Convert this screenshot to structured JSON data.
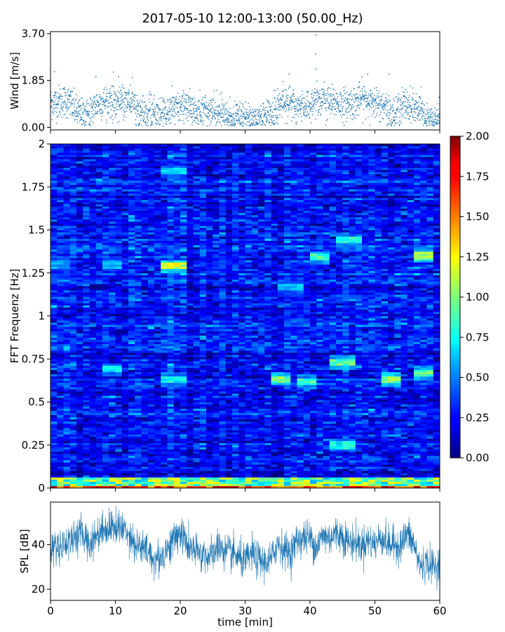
{
  "figure": {
    "title": "2017-05-10 12:00-13:00 (50.00_Hz)"
  },
  "chart_data": [
    {
      "id": "wind",
      "type": "scatter",
      "title": "",
      "xlabel": "",
      "ylabel": "Wind [m/s]",
      "xlim": [
        0,
        60
      ],
      "ylim": [
        -0.1,
        3.78
      ],
      "yticks": [
        0.0,
        1.85,
        3.7
      ],
      "ytick_labels": [
        "0.00",
        "1.85",
        "3.70"
      ],
      "x_ticks_labeled": false,
      "color": "#1f77b4",
      "samples_per_minute": 40,
      "levels": [
        {
          "x": 0,
          "y": 0.95
        },
        {
          "x": 2,
          "y": 1.05
        },
        {
          "x": 3,
          "y": 1.0
        },
        {
          "x": 4,
          "y": 0.6
        },
        {
          "x": 5,
          "y": 0.5
        },
        {
          "x": 6,
          "y": 0.55
        },
        {
          "x": 7,
          "y": 0.9
        },
        {
          "x": 8,
          "y": 1.0
        },
        {
          "x": 9,
          "y": 1.1
        },
        {
          "x": 10,
          "y": 0.9
        },
        {
          "x": 11,
          "y": 1.05
        },
        {
          "x": 12,
          "y": 1.1
        },
        {
          "x": 13,
          "y": 0.85
        },
        {
          "x": 14,
          "y": 0.6
        },
        {
          "x": 15,
          "y": 0.55
        },
        {
          "x": 17,
          "y": 0.55
        },
        {
          "x": 19,
          "y": 0.7
        },
        {
          "x": 20,
          "y": 0.75
        },
        {
          "x": 21,
          "y": 0.8
        },
        {
          "x": 22,
          "y": 0.7
        },
        {
          "x": 24,
          "y": 0.65
        },
        {
          "x": 26,
          "y": 0.55
        },
        {
          "x": 28,
          "y": 0.35
        },
        {
          "x": 30,
          "y": 0.45
        },
        {
          "x": 31,
          "y": 0.35
        },
        {
          "x": 32,
          "y": 0.4
        },
        {
          "x": 33,
          "y": 0.35
        },
        {
          "x": 34,
          "y": 0.55
        },
        {
          "x": 35,
          "y": 0.85
        },
        {
          "x": 36,
          "y": 1.1
        },
        {
          "x": 37,
          "y": 0.95
        },
        {
          "x": 38,
          "y": 0.7
        },
        {
          "x": 39,
          "y": 0.9
        },
        {
          "x": 40,
          "y": 0.85
        },
        {
          "x": 41,
          "y": 1.15
        },
        {
          "x": 42,
          "y": 1.05
        },
        {
          "x": 43,
          "y": 0.95
        },
        {
          "x": 44,
          "y": 1.0
        },
        {
          "x": 45,
          "y": 0.9
        },
        {
          "x": 46,
          "y": 0.95
        },
        {
          "x": 47,
          "y": 1.0
        },
        {
          "x": 48,
          "y": 1.15
        },
        {
          "x": 49,
          "y": 1.05
        },
        {
          "x": 50,
          "y": 0.95
        },
        {
          "x": 51,
          "y": 0.85
        },
        {
          "x": 52,
          "y": 0.6
        },
        {
          "x": 53,
          "y": 0.55
        },
        {
          "x": 54,
          "y": 0.85
        },
        {
          "x": 55,
          "y": 0.9
        },
        {
          "x": 56,
          "y": 0.8
        },
        {
          "x": 57,
          "y": 0.6
        },
        {
          "x": 58,
          "y": 0.3
        },
        {
          "x": 59,
          "y": 0.3
        },
        {
          "x": 60,
          "y": 0.4
        }
      ],
      "peaks": [
        {
          "x": 0.6,
          "y": 2.2
        },
        {
          "x": 7.0,
          "y": 2.0
        },
        {
          "x": 10.5,
          "y": 2.0
        },
        {
          "x": 36.8,
          "y": 2.1
        },
        {
          "x": 40.9,
          "y": 3.65
        },
        {
          "x": 40.85,
          "y": 2.9
        },
        {
          "x": 40.95,
          "y": 2.3
        },
        {
          "x": 48.9,
          "y": 2.1
        },
        {
          "x": 52.2,
          "y": 2.1
        }
      ]
    },
    {
      "id": "spectrogram",
      "type": "heatmap",
      "title": "",
      "xlabel": "",
      "ylabel": "FFT Frequenz [Hz]",
      "xlim": [
        0,
        60
      ],
      "ylim": [
        0,
        2
      ],
      "yticks": [
        0,
        0.25,
        0.5,
        0.75,
        1,
        1.25,
        1.5,
        1.75,
        2
      ],
      "ytick_labels": [
        "0",
        "0.25",
        "0.5",
        "0.75",
        "1",
        "1.25",
        "1.5",
        "1.75",
        "2"
      ],
      "x_ticks_labeled": false,
      "colormap": "jet",
      "clim": [
        0,
        2
      ],
      "time_bins": 60,
      "freq_bins": 160,
      "background_level": 0.28,
      "low_freq_band": {
        "f_max": 0.06,
        "level": 1.0
      },
      "bottom_row_level": 1.8,
      "features": [
        {
          "t0": 17,
          "t1": 21,
          "f": 1.29,
          "level": 1.2
        },
        {
          "t0": 17,
          "t1": 21,
          "f": 1.84,
          "level": 0.75
        },
        {
          "t0": 40,
          "t1": 43,
          "f": 1.34,
          "level": 0.95
        },
        {
          "t0": 44,
          "t1": 48,
          "f": 1.44,
          "level": 0.85
        },
        {
          "t0": 56,
          "t1": 59,
          "f": 1.35,
          "level": 1.1
        },
        {
          "t0": 34,
          "t1": 37,
          "f": 0.635,
          "level": 1.05
        },
        {
          "t0": 38,
          "t1": 41,
          "f": 0.62,
          "level": 0.9
        },
        {
          "t0": 43,
          "t1": 47,
          "f": 0.73,
          "level": 1.0
        },
        {
          "t0": 51,
          "t1": 54,
          "f": 0.63,
          "level": 1.05
        },
        {
          "t0": 56,
          "t1": 59,
          "f": 0.67,
          "level": 1.0
        },
        {
          "t0": 17,
          "t1": 21,
          "f": 0.63,
          "level": 0.8
        },
        {
          "t0": 8,
          "t1": 11,
          "f": 0.69,
          "level": 0.75
        },
        {
          "t0": 43,
          "t1": 47,
          "f": 0.25,
          "level": 0.8
        },
        {
          "t0": 0,
          "t1": 3,
          "f": 1.3,
          "level": 0.6
        },
        {
          "t0": 8,
          "t1": 11,
          "f": 1.3,
          "level": 0.65
        },
        {
          "t0": 35,
          "t1": 39,
          "f": 1.17,
          "level": 0.65
        }
      ]
    },
    {
      "id": "colorbar",
      "type": "colorbar",
      "title": "",
      "range": [
        0,
        2
      ],
      "ticks": [
        0.0,
        0.25,
        0.5,
        0.75,
        1.0,
        1.25,
        1.5,
        1.75,
        2.0
      ],
      "tick_labels": [
        "0.00",
        "0.25",
        "0.50",
        "0.75",
        "1.00",
        "1.25",
        "1.50",
        "1.75",
        "2.00"
      ]
    },
    {
      "id": "spl",
      "type": "line",
      "title": "",
      "xlabel": "time [min]",
      "ylabel": "SPL [dB]",
      "xlim": [
        0,
        60
      ],
      "ylim": [
        15,
        59
      ],
      "xticks": [
        0,
        10,
        20,
        30,
        40,
        50,
        60
      ],
      "xtick_labels": [
        "0",
        "10",
        "20",
        "30",
        "40",
        "50",
        "60"
      ],
      "yticks": [
        20,
        40
      ],
      "ytick_labels": [
        "20",
        "40"
      ],
      "color": "#1f77b4",
      "samples": 1800,
      "envelope": [
        {
          "x": 0,
          "mean": 38
        },
        {
          "x": 2,
          "mean": 40
        },
        {
          "x": 4,
          "mean": 44
        },
        {
          "x": 5,
          "mean": 45
        },
        {
          "x": 6,
          "mean": 40
        },
        {
          "x": 7,
          "mean": 44
        },
        {
          "x": 8,
          "mean": 47
        },
        {
          "x": 10,
          "mean": 48
        },
        {
          "x": 12,
          "mean": 46
        },
        {
          "x": 13,
          "mean": 40
        },
        {
          "x": 15,
          "mean": 37
        },
        {
          "x": 16,
          "mean": 33
        },
        {
          "x": 17,
          "mean": 34
        },
        {
          "x": 18,
          "mean": 38
        },
        {
          "x": 19,
          "mean": 42
        },
        {
          "x": 20,
          "mean": 46
        },
        {
          "x": 21,
          "mean": 40
        },
        {
          "x": 22,
          "mean": 37
        },
        {
          "x": 24,
          "mean": 35
        },
        {
          "x": 25,
          "mean": 35
        },
        {
          "x": 26,
          "mean": 40
        },
        {
          "x": 27,
          "mean": 36
        },
        {
          "x": 28,
          "mean": 36
        },
        {
          "x": 29,
          "mean": 34
        },
        {
          "x": 30,
          "mean": 32
        },
        {
          "x": 31,
          "mean": 36
        },
        {
          "x": 32,
          "mean": 33
        },
        {
          "x": 33,
          "mean": 32
        },
        {
          "x": 34,
          "mean": 33
        },
        {
          "x": 35,
          "mean": 41
        },
        {
          "x": 36,
          "mean": 38
        },
        {
          "x": 37,
          "mean": 36
        },
        {
          "x": 38,
          "mean": 42
        },
        {
          "x": 39,
          "mean": 43
        },
        {
          "x": 40,
          "mean": 43
        },
        {
          "x": 41,
          "mean": 39
        },
        {
          "x": 42,
          "mean": 44
        },
        {
          "x": 43,
          "mean": 43
        },
        {
          "x": 44,
          "mean": 45
        },
        {
          "x": 45,
          "mean": 44
        },
        {
          "x": 46,
          "mean": 41
        },
        {
          "x": 47,
          "mean": 41
        },
        {
          "x": 48,
          "mean": 40
        },
        {
          "x": 49,
          "mean": 42
        },
        {
          "x": 50,
          "mean": 40
        },
        {
          "x": 51,
          "mean": 44
        },
        {
          "x": 52,
          "mean": 40
        },
        {
          "x": 53,
          "mean": 40
        },
        {
          "x": 54,
          "mean": 40
        },
        {
          "x": 55,
          "mean": 45
        },
        {
          "x": 56,
          "mean": 40
        },
        {
          "x": 57,
          "mean": 30
        },
        {
          "x": 58,
          "mean": 32
        },
        {
          "x": 59,
          "mean": 30
        },
        {
          "x": 60,
          "mean": 31
        }
      ],
      "noise_amplitude": 4.0
    }
  ]
}
